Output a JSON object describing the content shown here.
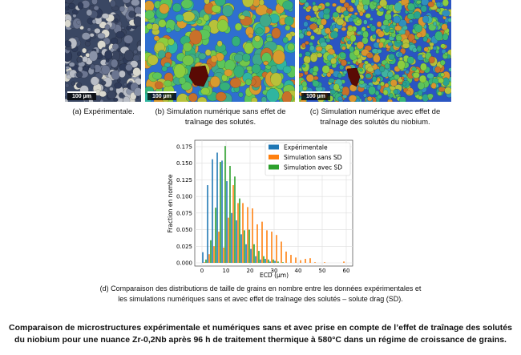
{
  "panels": [
    {
      "caption": "(a) Expérimentale.",
      "scale_label": "100 µm"
    },
    {
      "caption_line1": "(b) Simulation numérique sans effet de",
      "caption_line2": "traînage des solutés.",
      "scale_label": "100 µm"
    },
    {
      "caption_line1": "(c) Simulation numérique avec effet de",
      "caption_line2": "traînage des solutés du niobium.",
      "scale_label": "100 µm"
    }
  ],
  "chart_caption_line1": "(d) Comparaison des distributions de taille de grains en nombre entre les données expérimentales et",
  "chart_caption_line2": "les simulations numériques sans et avec effet de traînage des solutés – solute drag (SD).",
  "figure_caption_line1": "Comparaison de microstructures expérimentale et numériques sans et avec prise en compte de l’effet de traînage des solutés",
  "figure_caption_line2": "du niobium pour une nuance Zr-0,2Nb après 96 h de traitement thermique à 580°C dans un régime de croissance de grains.",
  "chart_data": {
    "type": "bar",
    "title": "",
    "xlabel": "ECD (µm)",
    "ylabel": "Fraction en nombre",
    "xlim": [
      -3,
      62
    ],
    "ylim": [
      0,
      0.18
    ],
    "xticks": [
      0,
      10,
      20,
      30,
      40,
      50,
      60
    ],
    "yticks": [
      "0.000",
      "0.025",
      "0.050",
      "0.075",
      "0.100",
      "0.125",
      "0.150",
      "0.175"
    ],
    "grid": true,
    "legend_position": "top-right",
    "bin_centers": [
      1,
      3,
      5,
      7,
      9,
      11,
      13,
      15,
      17,
      19,
      21,
      23,
      25,
      27,
      29,
      31,
      33,
      35,
      37,
      39,
      41,
      43,
      45,
      47,
      49,
      51,
      53,
      55,
      57,
      59
    ],
    "series": [
      {
        "name": "Expérimentale",
        "color": "#1f77b4",
        "values": [
          0.016,
          0.117,
          0.156,
          0.166,
          0.154,
          0.123,
          0.075,
          0.064,
          0.043,
          0.028,
          0.021,
          0.01,
          0.005,
          0.006,
          0.002,
          0.003,
          0,
          0,
          0,
          0,
          0,
          0,
          0,
          0,
          0,
          0,
          0,
          0,
          0,
          0
        ]
      },
      {
        "name": "Simulation sans SD",
        "color": "#ff7f0e",
        "values": [
          0.001,
          0.013,
          0.025,
          0.047,
          0.023,
          0.068,
          0.117,
          0.09,
          0.09,
          0.084,
          0.082,
          0.058,
          0.062,
          0.049,
          0.047,
          0.042,
          0.032,
          0.017,
          0.012,
          0.008,
          0.004,
          0.006,
          0.007,
          0.001,
          0,
          0.001,
          0,
          0,
          0,
          0.002
        ]
      },
      {
        "name": "Simulation avec SD",
        "color": "#2ca02c",
        "values": [
          0.005,
          0.034,
          0.083,
          0.152,
          0.176,
          0.146,
          0.13,
          0.097,
          0.049,
          0.05,
          0.028,
          0.018,
          0.01,
          0.005,
          0.005,
          0.002,
          0.001,
          0,
          0,
          0,
          0,
          0,
          0,
          0,
          0,
          0,
          0,
          0,
          0,
          0
        ]
      }
    ]
  }
}
